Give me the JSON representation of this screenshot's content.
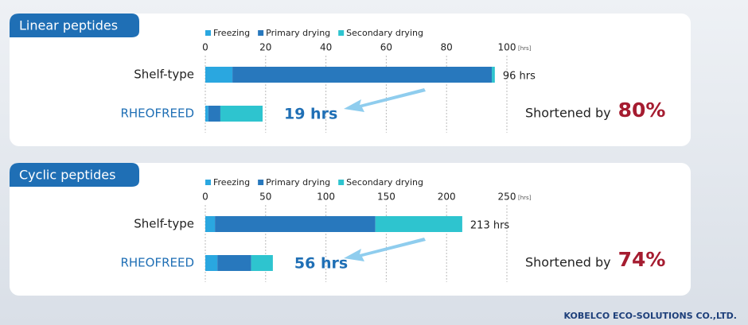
{
  "chart_data": [
    {
      "type": "bar",
      "orientation": "horizontal",
      "stacked": true,
      "title": "Linear peptides",
      "categories": [
        "Shelf-type",
        "RHEOFREED"
      ],
      "series": [
        {
          "name": "Freezing",
          "color": "#2aa7e0",
          "values": [
            9,
            1
          ]
        },
        {
          "name": "Primary drying",
          "color": "#2878bd",
          "values": [
            86,
            4
          ]
        },
        {
          "name": "Secondary drying",
          "color": "#2ec4cf",
          "values": [
            1,
            14
          ]
        }
      ],
      "totals": [
        96,
        19
      ],
      "total_labels": [
        "96 hrs",
        "19 hrs"
      ],
      "xlim": [
        0,
        100
      ],
      "xticks": [
        0,
        20,
        40,
        60,
        80,
        100
      ],
      "x_unit": "[hrs]",
      "grid": true,
      "annotation": "Shortened by",
      "reduction_label": "80%"
    },
    {
      "type": "bar",
      "orientation": "horizontal",
      "stacked": true,
      "title": "Cyclic peptides",
      "categories": [
        "Shelf-type",
        "RHEOFREED"
      ],
      "series": [
        {
          "name": "Freezing",
          "color": "#2aa7e0",
          "values": [
            8,
            10
          ]
        },
        {
          "name": "Primary drying",
          "color": "#2878bd",
          "values": [
            133,
            28
          ]
        },
        {
          "name": "Secondary drying",
          "color": "#2ec4cf",
          "values": [
            72,
            18
          ]
        }
      ],
      "totals": [
        213,
        56
      ],
      "total_labels": [
        "213 hrs",
        "56 hrs"
      ],
      "xlim": [
        0,
        250
      ],
      "xticks": [
        0,
        50,
        100,
        150,
        200,
        250
      ],
      "x_unit": "[hrs]",
      "grid": true,
      "annotation": "Shortened by",
      "reduction_label": "74%"
    }
  ],
  "footer": "KOBELCO ECO-SOLUTIONS CO.,LTD."
}
